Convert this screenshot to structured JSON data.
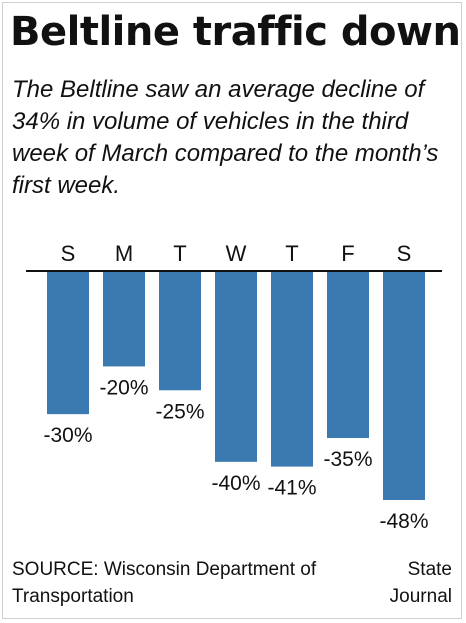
{
  "header": {
    "title": "Beltline traffic down",
    "subtitle": "The Beltline saw an average decline of 34% in volume of vehicles in the third week of March compared to the month’s first week."
  },
  "footer": {
    "source": "SOURCE: Wisconsin Department of Transportation",
    "credit": "State Journal"
  },
  "colors": {
    "bar": "#3a7ab0",
    "baseline": "#111111"
  },
  "chart_data": {
    "type": "bar",
    "title": "Beltline traffic down",
    "categories": [
      "S",
      "M",
      "T",
      "W",
      "T",
      "F",
      "S"
    ],
    "values": [
      -30,
      -20,
      -25,
      -40,
      -41,
      -35,
      -48
    ],
    "labels": [
      "-30%",
      "-20%",
      "-25%",
      "-40%",
      "-41%",
      "-35%",
      "-48%"
    ],
    "ylim": [
      -48,
      0
    ],
    "unit": "%",
    "grid": false,
    "legend": "none"
  }
}
